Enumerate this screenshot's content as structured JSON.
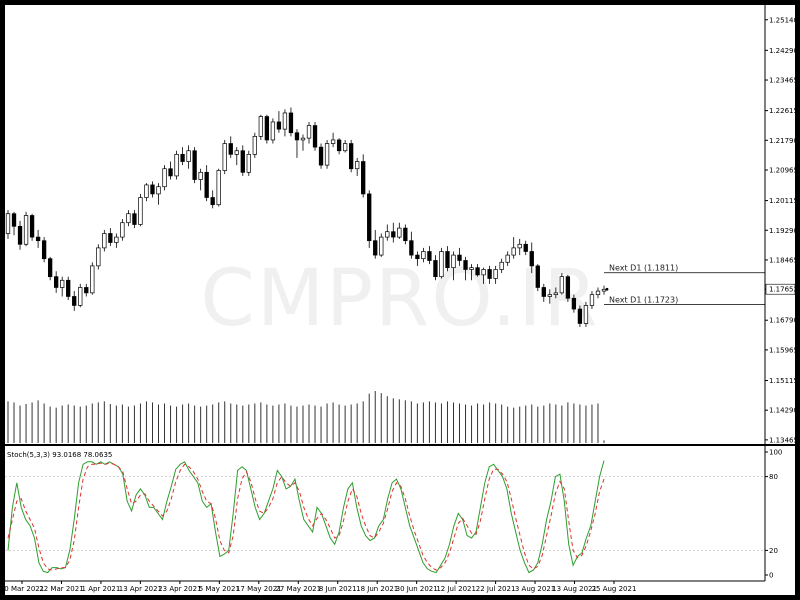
{
  "watermark": "CMPRO.IR",
  "chart_data": [
    {
      "type": "candlestick",
      "symbol": "",
      "price_axis": {
        "ylim": [
          1.1335,
          1.2555
        ],
        "ticks": [
          "1.25140",
          "1.24290",
          "1.23465",
          "1.22615",
          "1.21790",
          "1.20965",
          "1.20115",
          "1.19290",
          "1.18465",
          "1.17652",
          "1.16790",
          "1.15965",
          "1.15115",
          "1.14290",
          "1.13465"
        ],
        "tick_values": [
          1.2514,
          1.2429,
          1.23465,
          1.22615,
          1.2179,
          1.20965,
          1.20115,
          1.1929,
          1.18465,
          1.17652,
          1.1679,
          1.15965,
          1.15115,
          1.1429,
          1.13465
        ],
        "current_price": "1.17652",
        "current_value": 1.17652
      },
      "levels": [
        {
          "label": "Next D1 (1.1811)",
          "value": 1.1811
        },
        {
          "label": "Next D1 (1.1723)",
          "value": 1.1723
        }
      ],
      "candles": [
        [
          1.192,
          1.1985,
          1.1905,
          1.1975
        ],
        [
          1.1975,
          1.198,
          1.1915,
          1.194
        ],
        [
          1.194,
          1.1955,
          1.1875,
          1.189
        ],
        [
          1.189,
          1.198,
          1.1885,
          1.197
        ],
        [
          1.197,
          1.1975,
          1.19,
          1.191
        ],
        [
          1.191,
          1.193,
          1.188,
          1.19
        ],
        [
          1.19,
          1.191,
          1.184,
          1.185
        ],
        [
          1.185,
          1.1855,
          1.179,
          1.18
        ],
        [
          1.18,
          1.1815,
          1.1755,
          1.177
        ],
        [
          1.177,
          1.18,
          1.1745,
          1.179
        ],
        [
          1.179,
          1.18,
          1.1735,
          1.1745
        ],
        [
          1.1745,
          1.176,
          1.1705,
          1.172
        ],
        [
          1.172,
          1.178,
          1.1715,
          1.177
        ],
        [
          1.177,
          1.178,
          1.1745,
          1.1755
        ],
        [
          1.1755,
          1.184,
          1.175,
          1.183
        ],
        [
          1.183,
          1.189,
          1.182,
          1.188
        ],
        [
          1.188,
          1.193,
          1.187,
          1.192
        ],
        [
          1.192,
          1.1935,
          1.1885,
          1.1895
        ],
        [
          1.1895,
          1.192,
          1.188,
          1.191
        ],
        [
          1.191,
          1.196,
          1.19,
          1.195
        ],
        [
          1.195,
          1.1985,
          1.194,
          1.1975
        ],
        [
          1.1975,
          1.1985,
          1.1935,
          1.1945
        ],
        [
          1.1945,
          1.203,
          1.194,
          1.202
        ],
        [
          1.202,
          1.206,
          1.201,
          1.2055
        ],
        [
          1.2055,
          1.2065,
          1.202,
          1.203
        ],
        [
          1.203,
          1.206,
          1.2,
          1.205
        ],
        [
          1.205,
          1.211,
          1.204,
          1.21
        ],
        [
          1.21,
          1.212,
          1.207,
          1.208
        ],
        [
          1.208,
          1.215,
          1.207,
          1.214
        ],
        [
          1.214,
          1.216,
          1.211,
          1.212
        ],
        [
          1.212,
          1.2165,
          1.21,
          1.215
        ],
        [
          1.215,
          1.216,
          1.206,
          1.207
        ],
        [
          1.207,
          1.21,
          1.204,
          1.209
        ],
        [
          1.209,
          1.211,
          1.201,
          1.202
        ],
        [
          1.202,
          1.204,
          1.199,
          1.2
        ],
        [
          1.2,
          1.21,
          1.1995,
          1.2095
        ],
        [
          1.2095,
          1.218,
          1.2085,
          1.217
        ],
        [
          1.217,
          1.219,
          1.213,
          1.214
        ],
        [
          1.214,
          1.216,
          1.211,
          1.215
        ],
        [
          1.215,
          1.2165,
          1.208,
          1.209
        ],
        [
          1.209,
          1.215,
          1.208,
          1.214
        ],
        [
          1.214,
          1.22,
          1.213,
          1.219
        ],
        [
          1.219,
          1.225,
          1.218,
          1.2245
        ],
        [
          1.2245,
          1.225,
          1.217,
          1.218
        ],
        [
          1.218,
          1.224,
          1.217,
          1.223
        ],
        [
          1.223,
          1.226,
          1.22,
          1.221
        ],
        [
          1.221,
          1.2265,
          1.219,
          1.2255
        ],
        [
          1.2255,
          1.227,
          1.219,
          1.22
        ],
        [
          1.22,
          1.221,
          1.213,
          1.218
        ],
        [
          1.218,
          1.2195,
          1.215,
          1.2185
        ],
        [
          1.2185,
          1.223,
          1.217,
          1.222
        ],
        [
          1.222,
          1.223,
          1.215,
          1.216
        ],
        [
          1.216,
          1.217,
          1.21,
          1.211
        ],
        [
          1.211,
          1.218,
          1.21,
          1.217
        ],
        [
          1.217,
          1.22,
          1.216,
          1.218
        ],
        [
          1.218,
          1.2185,
          1.214,
          1.215
        ],
        [
          1.215,
          1.218,
          1.2145,
          1.217
        ],
        [
          1.217,
          1.218,
          1.209,
          1.21
        ],
        [
          1.21,
          1.213,
          1.208,
          1.212
        ],
        [
          1.212,
          1.214,
          1.202,
          1.203
        ],
        [
          1.203,
          1.204,
          1.188,
          1.19
        ],
        [
          1.19,
          1.193,
          1.185,
          1.186
        ],
        [
          1.186,
          1.192,
          1.1855,
          1.191
        ],
        [
          1.191,
          1.1945,
          1.19,
          1.1925
        ],
        [
          1.1925,
          1.195,
          1.1895,
          1.191
        ],
        [
          1.191,
          1.195,
          1.1905,
          1.1935
        ],
        [
          1.1935,
          1.1945,
          1.189,
          1.19
        ],
        [
          1.19,
          1.1925,
          1.185,
          1.186
        ],
        [
          1.186,
          1.187,
          1.183,
          1.185
        ],
        [
          1.185,
          1.188,
          1.184,
          1.187
        ],
        [
          1.187,
          1.1885,
          1.1835,
          1.1845
        ],
        [
          1.1845,
          1.186,
          1.179,
          1.18
        ],
        [
          1.18,
          1.188,
          1.1795,
          1.187
        ],
        [
          1.187,
          1.1885,
          1.1815,
          1.1825
        ],
        [
          1.1825,
          1.187,
          1.179,
          1.186
        ],
        [
          1.186,
          1.188,
          1.183,
          1.1845
        ],
        [
          1.1845,
          1.1855,
          1.179,
          1.182
        ],
        [
          1.182,
          1.1835,
          1.179,
          1.1825
        ],
        [
          1.1825,
          1.1835,
          1.18,
          1.1805
        ],
        [
          1.1805,
          1.1825,
          1.178,
          1.182
        ],
        [
          1.182,
          1.183,
          1.178,
          1.1795
        ],
        [
          1.1795,
          1.183,
          1.178,
          1.182
        ],
        [
          1.182,
          1.185,
          1.181,
          1.184
        ],
        [
          1.184,
          1.187,
          1.183,
          1.186
        ],
        [
          1.186,
          1.191,
          1.185,
          1.188
        ],
        [
          1.188,
          1.1905,
          1.186,
          1.189
        ],
        [
          1.189,
          1.19,
          1.186,
          1.187
        ],
        [
          1.187,
          1.1895,
          1.181,
          1.183
        ],
        [
          1.183,
          1.1835,
          1.176,
          1.177
        ],
        [
          1.177,
          1.178,
          1.173,
          1.1745
        ],
        [
          1.1745,
          1.1765,
          1.1725,
          1.175
        ],
        [
          1.175,
          1.177,
          1.174,
          1.1755
        ],
        [
          1.1755,
          1.181,
          1.175,
          1.18
        ],
        [
          1.18,
          1.1805,
          1.173,
          1.174
        ],
        [
          1.174,
          1.175,
          1.17,
          1.171
        ],
        [
          1.171,
          1.172,
          1.166,
          1.167
        ],
        [
          1.167,
          1.173,
          1.166,
          1.172
        ],
        [
          1.172,
          1.176,
          1.171,
          1.175
        ],
        [
          1.175,
          1.177,
          1.174,
          1.176
        ],
        [
          1.176,
          1.1775,
          1.175,
          1.1765
        ]
      ],
      "volume": [
        80,
        78,
        72,
        75,
        78,
        82,
        76,
        70,
        68,
        72,
        74,
        72,
        70,
        72,
        76,
        78,
        80,
        75,
        72,
        74,
        70,
        72,
        76,
        80,
        78,
        74,
        76,
        72,
        70,
        74,
        76,
        72,
        70,
        72,
        74,
        78,
        80,
        76,
        74,
        72,
        74,
        76,
        78,
        74,
        72,
        74,
        76,
        72,
        70,
        72,
        74,
        72,
        70,
        76,
        78,
        74,
        72,
        74,
        76,
        80,
        95,
        100,
        96,
        90,
        86,
        84,
        82,
        80,
        76,
        78,
        80,
        78,
        76,
        80,
        78,
        76,
        74,
        72,
        76,
        74,
        78,
        76,
        74,
        70,
        68,
        70,
        72,
        74,
        70,
        72,
        76,
        74,
        72,
        78,
        76,
        74,
        72,
        74,
        76,
        5
      ],
      "date_labels": [
        "10 Mar 2021",
        "22 Mar 2021",
        "1 Apr 2021",
        "13 Apr 2021",
        "23 Apr 2021",
        "5 May 2021",
        "17 May 2021",
        "27 May 2021",
        "8 Jun 2021",
        "18 Jun 2021",
        "30 Jun 2021",
        "12 Jul 2021",
        "22 Jul 2021",
        "3 Aug 2021",
        "13 Aug 2021",
        "25 Aug 2021"
      ]
    },
    {
      "type": "line",
      "title": "Stoch(5,3,3) 93.0168 78.0635",
      "ylim": [
        0,
        100
      ],
      "ticks": [
        0,
        20,
        80,
        100
      ],
      "levels": [
        20,
        80
      ],
      "series": [
        {
          "color": "#2e9e2e",
          "dash": "solid",
          "values": [
            20,
            55,
            75,
            55,
            45,
            40,
            30,
            10,
            3,
            2,
            6,
            6,
            5,
            6,
            20,
            45,
            75,
            90,
            92,
            92,
            90,
            92,
            90,
            92,
            90,
            88,
            82,
            60,
            52,
            65,
            70,
            65,
            55,
            55,
            50,
            45,
            60,
            72,
            86,
            90,
            92,
            85,
            80,
            75,
            60,
            55,
            58,
            35,
            15,
            17,
            20,
            50,
            85,
            88,
            85,
            70,
            55,
            45,
            50,
            60,
            70,
            85,
            80,
            70,
            72,
            78,
            60,
            45,
            40,
            35,
            55,
            50,
            40,
            30,
            25,
            35,
            55,
            70,
            75,
            55,
            40,
            32,
            28,
            30,
            40,
            45,
            62,
            75,
            78,
            70,
            55,
            40,
            30,
            20,
            10,
            5,
            3,
            2,
            8,
            14,
            25,
            40,
            50,
            45,
            32,
            30,
            35,
            55,
            75,
            88,
            90,
            85,
            80,
            70,
            50,
            35,
            20,
            10,
            2,
            4,
            10,
            25,
            45,
            60,
            80,
            82,
            60,
            25,
            8,
            15,
            18,
            30,
            40,
            60,
            80,
            93
          ]
        },
        {
          "color": "#e03030",
          "dash": "4,3",
          "values": [
            30,
            45,
            60,
            62,
            52,
            45,
            38,
            22,
            10,
            5,
            4,
            5,
            6,
            6,
            12,
            28,
            55,
            78,
            88,
            90,
            90,
            91,
            90,
            91,
            90,
            88,
            84,
            70,
            58,
            60,
            65,
            66,
            60,
            56,
            52,
            48,
            52,
            62,
            76,
            85,
            90,
            88,
            84,
            78,
            68,
            60,
            58,
            46,
            28,
            20,
            18,
            32,
            62,
            78,
            84,
            76,
            62,
            52,
            50,
            55,
            62,
            75,
            80,
            75,
            72,
            75,
            68,
            55,
            46,
            40,
            46,
            50,
            45,
            38,
            30,
            32,
            44,
            60,
            70,
            64,
            50,
            40,
            32,
            30,
            35,
            42,
            54,
            68,
            75,
            72,
            62,
            48,
            36,
            26,
            16,
            10,
            6,
            4,
            6,
            10,
            18,
            30,
            42,
            46,
            40,
            34,
            33,
            44,
            62,
            78,
            86,
            86,
            82,
            76,
            62,
            46,
            32,
            18,
            8,
            5,
            7,
            16,
            32,
            48,
            66,
            76,
            70,
            44,
            20,
            14,
            16,
            24,
            36,
            50,
            68,
            78
          ]
        }
      ],
      "date_labels": [
        "10 Mar 2021",
        "22 Mar 2021",
        "1 Apr 2021",
        "13 Apr 2021",
        "23 Apr 2021",
        "5 May 2021",
        "17 May 2021",
        "27 May 2021",
        "8 Jun 2021",
        "18 Jun 2021",
        "30 Jun 2021",
        "12 Jul 2021",
        "22 Jul 2021",
        "3 Aug 2021",
        "13 Aug 2021",
        "25 Aug 2021"
      ]
    }
  ]
}
